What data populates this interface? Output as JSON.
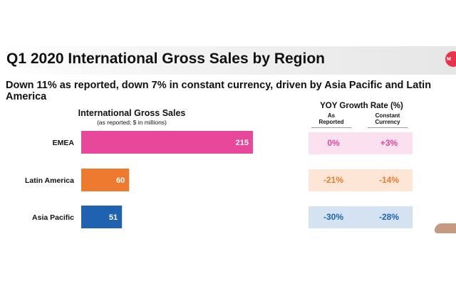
{
  "slide": {
    "title": "Q1 2020 International Gross Sales by Region",
    "subtitle": "Down 11% as reported, down 7% in constant currency, driven by Asia Pacific and Latin America",
    "brand_color": "#e8334a"
  },
  "chart_data": {
    "type": "bar",
    "orientation": "horizontal",
    "title": "International Gross Sales",
    "subtitle": "(as reported; $ in millions)",
    "categories": [
      "EMEA",
      "Latin America",
      "Asia Pacific"
    ],
    "values": [
      215,
      60,
      51
    ],
    "colors": [
      "#e8489a",
      "#ee7a2f",
      "#1f63b0"
    ],
    "xlim": [
      0,
      215
    ],
    "grid": false,
    "data_labels": true
  },
  "yoy": {
    "title": "YOY Growth Rate (%)",
    "columns": [
      {
        "line1": "As",
        "line2": "Reported"
      },
      {
        "line1": "Constant",
        "line2": "Currency"
      }
    ],
    "rows": [
      {
        "region": "EMEA",
        "as_reported": "0%",
        "constant_currency": "+3%",
        "bg": "#fbe0ef",
        "text_color": "#e8489a"
      },
      {
        "region": "Latin America",
        "as_reported": "-21%",
        "constant_currency": "-14%",
        "bg": "#fde6d6",
        "text_color": "#ee7a2f"
      },
      {
        "region": "Asia Pacific",
        "as_reported": "-30%",
        "constant_currency": "-28%",
        "bg": "#d5e2f1",
        "text_color": "#1f63b0"
      }
    ]
  }
}
